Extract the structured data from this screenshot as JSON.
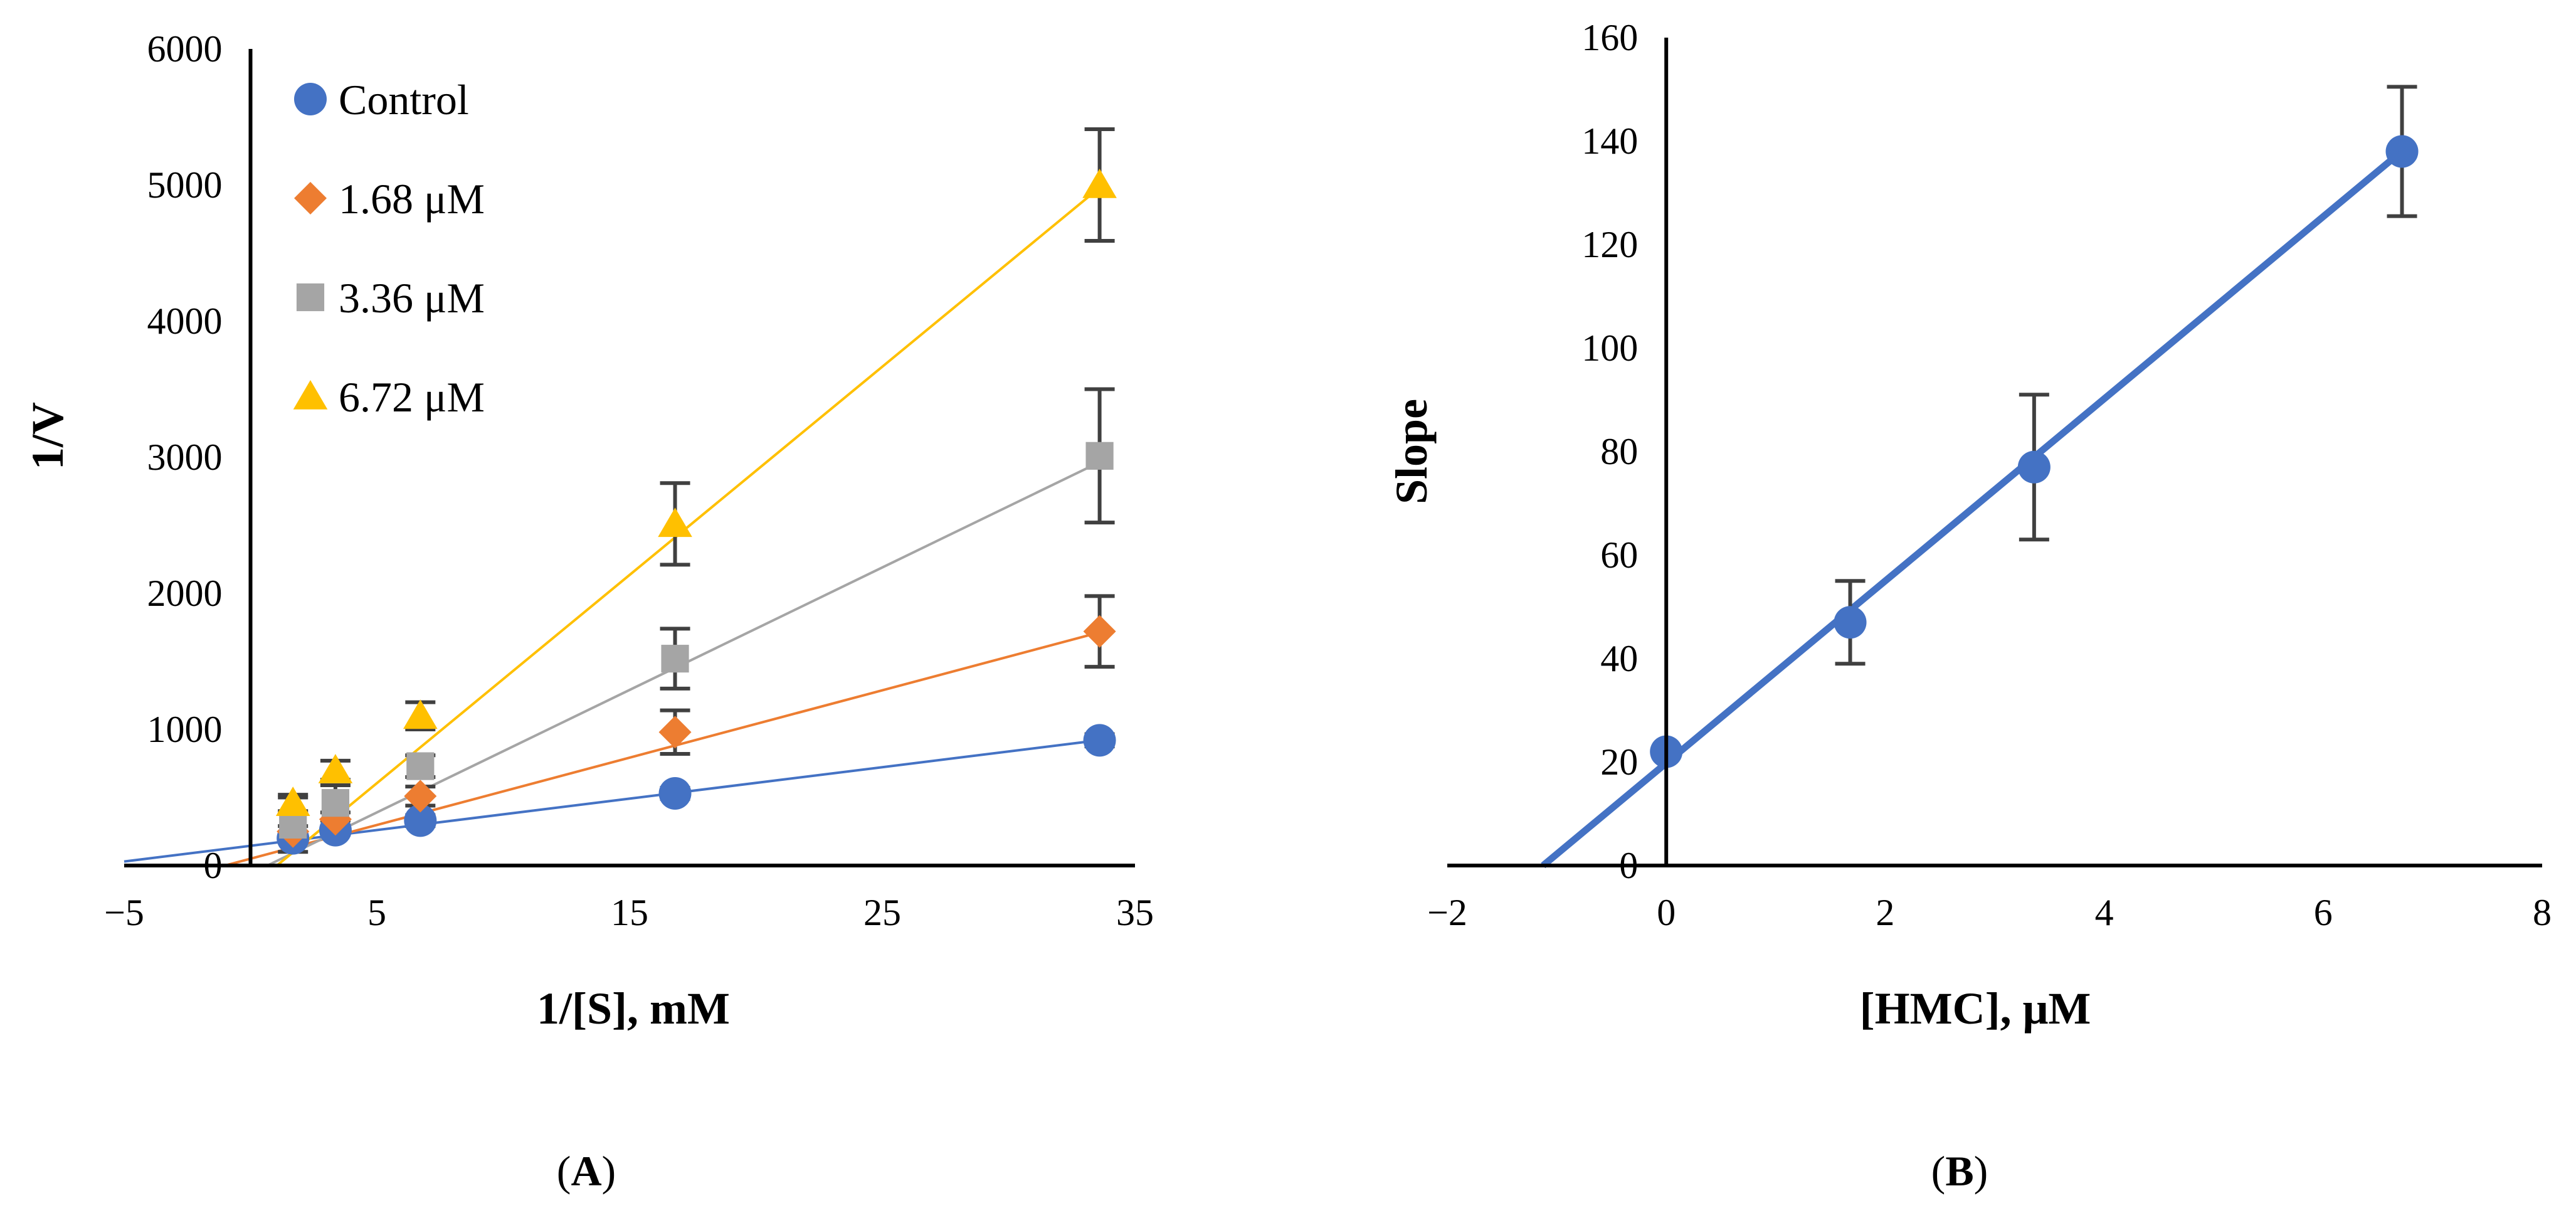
{
  "chart_data": [
    {
      "id": "A",
      "type": "scatter",
      "panel_label": "A",
      "xlabel": "1/[S], mM",
      "ylabel": "1/V",
      "xlim": [
        -5,
        35
      ],
      "ylim": [
        0,
        6000
      ],
      "x_ticks": [
        -5,
        5,
        15,
        25,
        35
      ],
      "x_tick_labels": [
        "−5",
        "5",
        "15",
        "25",
        "35"
      ],
      "y_ticks": [
        0,
        1000,
        2000,
        3000,
        4000,
        5000,
        6000
      ],
      "y_tick_labels": [
        "0",
        "1000",
        "2000",
        "3000",
        "4000",
        "5000",
        "6000"
      ],
      "legend_position": "top-left",
      "series": [
        {
          "name": "Control",
          "color": "#4472C4",
          "marker": "circle",
          "x": [
            1.68,
            3.36,
            6.72,
            16.8,
            33.6
          ],
          "y": [
            200,
            260,
            330,
            530,
            920
          ],
          "err": [
            30,
            35,
            40,
            40,
            45
          ],
          "trend": [
            145,
            23.1
          ]
        },
        {
          "name": "1.68 μM",
          "color": "#ED7D31",
          "marker": "diamond",
          "x": [
            1.68,
            3.36,
            6.72,
            16.8,
            33.6
          ],
          "y": [
            250,
            340,
            510,
            980,
            1720
          ],
          "err": [
            40,
            50,
            70,
            160,
            260
          ],
          "trend": [
            50,
            49.5
          ]
        },
        {
          "name": "3.36 μM",
          "color": "#A5A5A5",
          "marker": "square",
          "x": [
            1.68,
            3.36,
            6.72,
            16.8,
            33.6
          ],
          "y": [
            300,
            460,
            730,
            1520,
            3010
          ],
          "err": [
            200,
            130,
            80,
            220,
            490
          ],
          "trend": [
            -60,
            90
          ]
        },
        {
          "name": "6.72 μM",
          "color": "#FFC000",
          "marker": "triangle",
          "x": [
            1.68,
            3.36,
            6.72,
            16.8,
            33.6
          ],
          "y": [
            460,
            700,
            1100,
            2510,
            5000
          ],
          "err": [
            60,
            70,
            100,
            300,
            410
          ],
          "trend": [
            -160,
            153
          ]
        }
      ]
    },
    {
      "id": "B",
      "type": "scatter",
      "panel_label": "B",
      "xlabel": "[HMC], μM",
      "ylabel": "Slope",
      "xlim": [
        -2,
        8
      ],
      "ylim": [
        0,
        160
      ],
      "x_ticks": [
        -2,
        0,
        2,
        4,
        6,
        8
      ],
      "x_tick_labels": [
        "−2",
        "0",
        "2",
        "4",
        "6",
        "8"
      ],
      "y_ticks": [
        0,
        20,
        40,
        60,
        80,
        100,
        120,
        140,
        160
      ],
      "y_tick_labels": [
        "0",
        "20",
        "40",
        "60",
        "80",
        "100",
        "120",
        "140",
        "160"
      ],
      "series": [
        {
          "name": "Slope",
          "color": "#4472C4",
          "marker": "circle",
          "x": [
            0,
            1.68,
            3.36,
            6.72
          ],
          "y": [
            22,
            47,
            77,
            138
          ],
          "err": [
            0,
            8,
            14,
            12.5
          ],
          "trend": [
            19.8,
            17.6
          ]
        }
      ]
    }
  ]
}
